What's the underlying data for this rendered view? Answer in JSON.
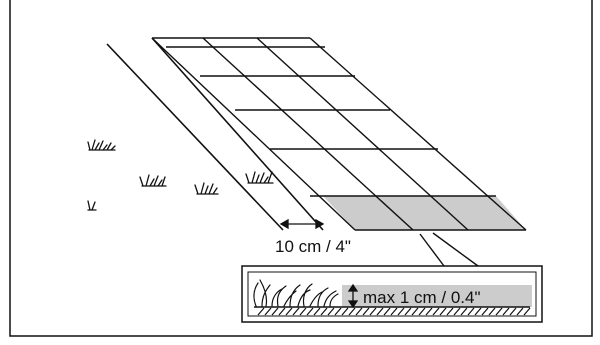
{
  "labels": {
    "edge_distance": "10 cm / 4\"",
    "max_height": "max 1 cm / 0.4\""
  },
  "icons": {
    "arrow_vertical": "double-arrow-vertical-icon",
    "arrow_horizontal": "double-arrow-horizontal-icon",
    "grass": "grass-tuft-icon"
  },
  "colors": {
    "stroke": "#111111",
    "highlight": "#cccccc",
    "background": "#ffffff"
  }
}
